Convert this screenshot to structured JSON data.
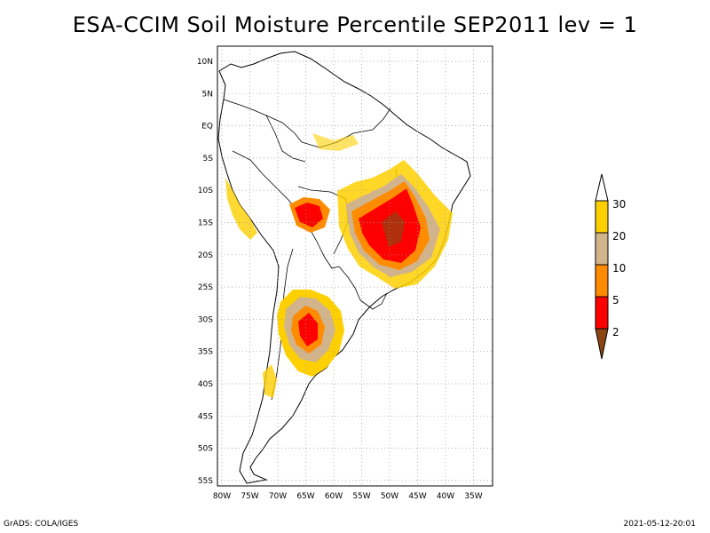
{
  "title": "ESA-CCIM Soil Moisture Percentile SEP2011 lev = 1",
  "footer": {
    "left": "GrADS: COLA/IGES",
    "right": "2021-05-12-20:01"
  },
  "map": {
    "region": "South America",
    "lat_labels": [
      "10N",
      "5N",
      "EQ",
      "5S",
      "10S",
      "15S",
      "20S",
      "25S",
      "30S",
      "35S",
      "40S",
      "45S",
      "50S",
      "55S"
    ],
    "lon_labels": [
      "80W",
      "75W",
      "70W",
      "65W",
      "60W",
      "55W",
      "50W",
      "45W",
      "40W",
      "35W"
    ],
    "lat_range": [
      -56,
      11
    ],
    "lon_range": [
      -81,
      -32
    ],
    "grid": "dotted",
    "low_percentile_regions": [
      {
        "area": "central-east Brazil",
        "percentile_class": "2-5"
      },
      {
        "area": "Bolivia",
        "percentile_class": "2-5"
      },
      {
        "area": "central Argentina",
        "percentile_class": "2-5"
      }
    ]
  },
  "legend": {
    "labels": [
      "30",
      "20",
      "10",
      "5",
      "2"
    ],
    "colors": {
      "above_30": "#ffffff",
      "c20_30": "#ffd000",
      "c10_20": "#d2b48c",
      "c5_10": "#ff8c00",
      "c2_5": "#ff0000",
      "below_2": "#8b4513"
    }
  }
}
